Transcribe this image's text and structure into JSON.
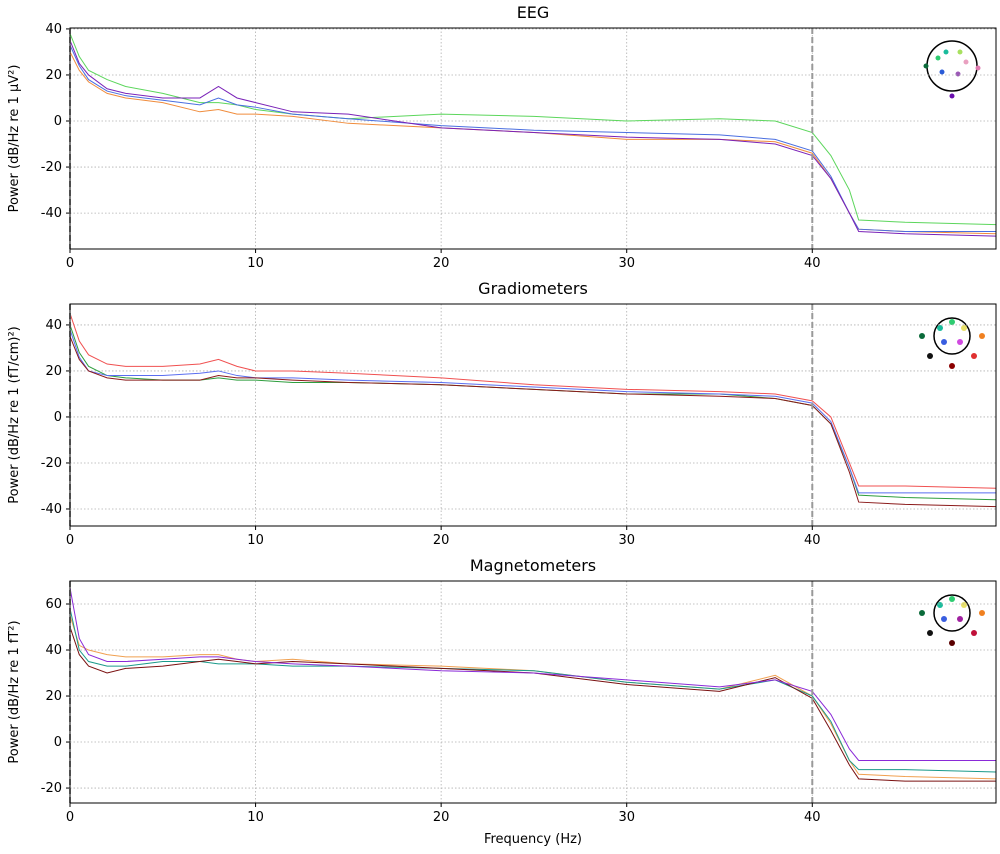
{
  "chart_data": [
    {
      "type": "line",
      "title": "EEG",
      "ylabel": "Power (dB/Hz re 1 μV²)",
      "x": [
        0,
        0.5,
        1,
        2,
        3,
        5,
        7,
        8,
        9,
        10,
        12,
        15,
        20,
        25,
        30,
        35,
        38,
        40,
        41,
        42,
        42.5,
        45,
        49.9
      ],
      "series": [
        {
          "color": "#5cd65c",
          "values": [
            38,
            28,
            22,
            18,
            15,
            12,
            8,
            8,
            7,
            5,
            3,
            1,
            3,
            2,
            0,
            1,
            0,
            -5,
            -15,
            -30,
            -43,
            -44,
            -45
          ]
        },
        {
          "color": "#f08c3c",
          "values": [
            30,
            22,
            17,
            12,
            10,
            8,
            4,
            5,
            3,
            3,
            2,
            -1,
            -3,
            -5,
            -8,
            -8,
            -9,
            -14,
            -25,
            -40,
            -47,
            -48,
            -49
          ]
        },
        {
          "color": "#4a6ee0",
          "values": [
            33,
            24,
            18,
            13,
            11,
            9,
            7,
            10,
            7,
            6,
            3,
            1,
            -2,
            -4,
            -5,
            -6,
            -8,
            -13,
            -24,
            -40,
            -47,
            -48,
            -48
          ]
        },
        {
          "color": "#7a22b8",
          "values": [
            35,
            25,
            20,
            14,
            12,
            10,
            10,
            15,
            10,
            8,
            4,
            3,
            -3,
            -5,
            -7,
            -8,
            -10,
            -15,
            -25,
            -40,
            -48,
            -49,
            -50
          ]
        }
      ],
      "xlim": [
        0,
        49.9
      ],
      "ylim": [
        -55.6,
        40.4
      ],
      "xticks": [
        0,
        10,
        20,
        30,
        40
      ],
      "yticks": [
        -40,
        -20,
        0,
        20,
        40
      ],
      "vlines": [
        0,
        40
      ],
      "grid": true
    },
    {
      "type": "line",
      "title": "Gradiometers",
      "ylabel": "Power (dB/Hz re 1 (fT/cm)²)",
      "x": [
        0,
        0.5,
        1,
        2,
        3,
        5,
        7,
        8,
        9,
        10,
        12,
        15,
        20,
        25,
        30,
        35,
        38,
        40,
        41,
        42,
        42.5,
        45,
        49.9
      ],
      "series": [
        {
          "color": "#2e9e3e",
          "values": [
            40,
            28,
            22,
            18,
            17,
            16,
            16,
            17,
            16,
            16,
            15,
            15,
            14,
            12,
            10,
            10,
            8,
            5,
            -3,
            -22,
            -34,
            -35,
            -36
          ]
        },
        {
          "color": "#5a6ef0",
          "values": [
            38,
            26,
            20,
            18,
            18,
            18,
            19,
            20,
            18,
            17,
            17,
            16,
            15,
            13,
            11,
            10,
            9,
            6,
            -2,
            -22,
            -33,
            -33,
            -33
          ]
        },
        {
          "color": "#8b1a1a",
          "values": [
            35,
            25,
            20,
            17,
            16,
            16,
            16,
            18,
            17,
            17,
            16,
            15,
            14,
            12,
            10,
            9,
            8,
            5,
            -3,
            -24,
            -37,
            -38,
            -39
          ]
        },
        {
          "color": "#f05050",
          "values": [
            45,
            33,
            27,
            23,
            22,
            22,
            23,
            25,
            22,
            20,
            20,
            19,
            17,
            14,
            12,
            11,
            10,
            7,
            0,
            -20,
            -30,
            -30,
            -31
          ]
        }
      ],
      "xlim": [
        0,
        49.9
      ],
      "ylim": [
        -47.4,
        49.1
      ],
      "xticks": [
        0,
        10,
        20,
        30,
        40
      ],
      "yticks": [
        -40,
        -20,
        0,
        20,
        40
      ],
      "vlines": [
        0,
        40
      ],
      "grid": true
    },
    {
      "type": "line",
      "title": "Magnetometers",
      "ylabel": "Power (dB/Hz re 1 fT²)",
      "xlabel": "Frequency (Hz)",
      "x": [
        0,
        0.5,
        1,
        2,
        3,
        5,
        7,
        8,
        9,
        10,
        12,
        15,
        20,
        25,
        30,
        35,
        38,
        40,
        41,
        42,
        42.5,
        45,
        49.9
      ],
      "series": [
        {
          "color": "#f0a050",
          "values": [
            55,
            42,
            40,
            38,
            37,
            37,
            38,
            38,
            36,
            35,
            36,
            34,
            33,
            31,
            26,
            23,
            29,
            20,
            8,
            -8,
            -14,
            -15,
            -16
          ]
        },
        {
          "color": "#1a9a8a",
          "values": [
            58,
            40,
            35,
            33,
            33,
            35,
            35,
            34,
            34,
            34,
            33,
            33,
            32,
            31,
            26,
            23,
            27,
            20,
            9,
            -8,
            -12,
            -12,
            -13
          ]
        },
        {
          "color": "#7a1010",
          "values": [
            50,
            38,
            33,
            30,
            32,
            33,
            35,
            36,
            35,
            34,
            35,
            34,
            32,
            30,
            25,
            22,
            28,
            19,
            5,
            -10,
            -16,
            -17,
            -17
          ]
        },
        {
          "color": "#8a2ad8",
          "values": [
            67,
            45,
            38,
            35,
            35,
            36,
            37,
            37,
            36,
            35,
            34,
            33,
            31,
            30,
            27,
            24,
            27,
            22,
            12,
            -3,
            -8,
            -8,
            -8
          ]
        }
      ],
      "xlim": [
        0,
        49.9
      ],
      "ylim": [
        -26.5,
        70
      ],
      "xticks": [
        0,
        10,
        20,
        30,
        40
      ],
      "yticks": [
        -20,
        0,
        20,
        40,
        60
      ],
      "vlines": [
        0,
        40
      ],
      "grid": true
    }
  ]
}
